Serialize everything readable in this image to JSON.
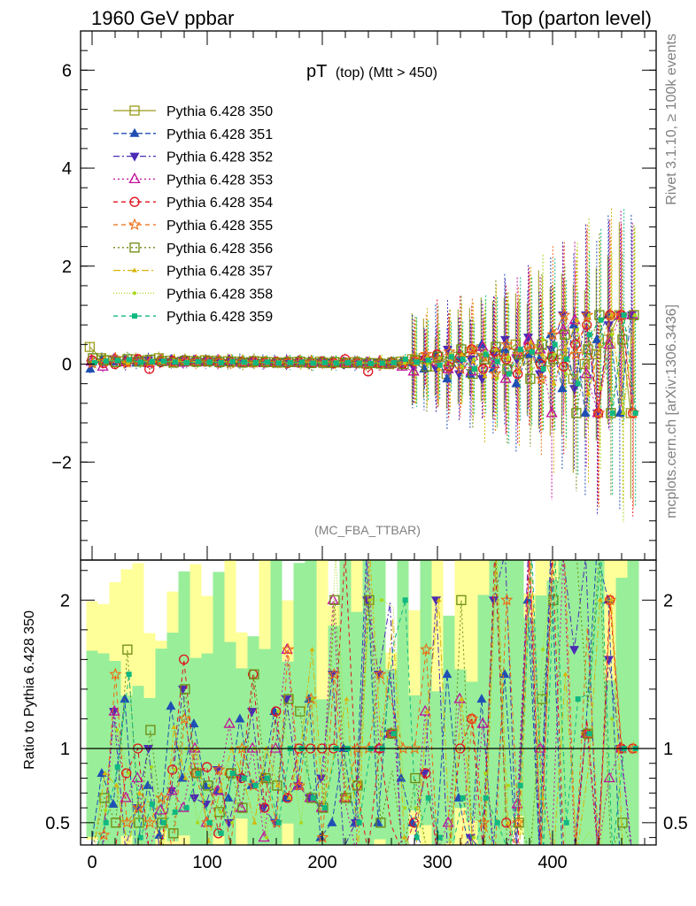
{
  "header": {
    "left": "1960 GeV ppbar",
    "right": "Top (parton level)"
  },
  "side_labels": {
    "rivet": "Rivet 3.1.10, ≥ 100k events",
    "mcplots": "mcplots.cern.ch [arXiv:1306.3436]"
  },
  "colors": {
    "reference_band_yellow": "#ffff99",
    "reference_band_green": "#99ee99"
  },
  "chart_data": [
    {
      "type": "scatter",
      "panel": "main",
      "title_main": "pT",
      "title_sub": "(top) (Mtt > 450)",
      "watermark": "(MC_FBA_TTBAR)",
      "xlabel": "",
      "ylabel": "",
      "xlim": [
        -10,
        490
      ],
      "ylim": [
        -4,
        6.8
      ],
      "yticks": [
        -2,
        0,
        2,
        4,
        6
      ],
      "ytick_labels": [
        "−2",
        "0",
        "2",
        "4",
        "6"
      ],
      "legend_position": "top-left",
      "x": [
        0,
        10,
        20,
        30,
        40,
        50,
        60,
        70,
        80,
        90,
        100,
        110,
        120,
        130,
        140,
        150,
        160,
        170,
        180,
        190,
        200,
        210,
        220,
        230,
        240,
        250,
        260,
        270,
        280,
        290,
        300,
        310,
        320,
        330,
        340,
        350,
        360,
        370,
        380,
        390,
        400,
        410,
        420,
        430,
        440,
        450,
        460,
        470
      ],
      "series": [
        {
          "name": "Pythia 6.428 350",
          "color": "#9a9a1a",
          "dash": "solid",
          "marker": "square-open",
          "values": [
            0.35,
            0.12,
            0.08,
            0.06,
            0.1,
            0.08,
            0.12,
            0.07,
            0.05,
            0.06,
            0.08,
            0.07,
            0.06,
            0.05,
            0.04,
            0.05,
            0.04,
            0.03,
            0.04,
            0.03,
            0.05,
            0.02,
            0.03,
            0.04,
            0.01,
            0.02,
            0.0,
            0.05,
            0.1,
            0.12,
            -0.05,
            -0.2,
            0.15,
            0.25,
            0.3,
            0.1,
            0.2,
            0.4,
            0.1,
            0.3,
            0.05,
            0.2,
            -0.3,
            0.0,
            0.2,
            0.5,
            1.0,
            -1.0
          ]
        },
        {
          "name": "Pythia 6.428 351",
          "color": "#1f4fb4",
          "dash": "6,3",
          "marker": "triangle-up",
          "values": [
            -0.1,
            0.1,
            0.05,
            0.08,
            0.02,
            0.06,
            0.05,
            0.09,
            0.04,
            0.07,
            0.06,
            0.05,
            0.04,
            0.06,
            0.03,
            0.04,
            0.05,
            0.02,
            0.03,
            0.04,
            0.02,
            0.01,
            0.03,
            0.02,
            0.03,
            0.01,
            0.02,
            0.04,
            0.05,
            -0.1,
            0.2,
            -0.3,
            0.1,
            -0.2,
            0.4,
            -0.1,
            0.3,
            -0.4,
            0.2,
            0.1,
            0.6,
            -0.5,
            0.8,
            -1.0,
            0.5,
            1.0,
            -1.0,
            1.0
          ]
        },
        {
          "name": "Pythia 6.428 352",
          "color": "#4b2bb4",
          "dash": "7,3,2,3",
          "marker": "triangle-down",
          "values": [
            0.0,
            0.04,
            0.1,
            0.02,
            0.06,
            0.08,
            0.03,
            0.05,
            0.07,
            0.04,
            0.05,
            0.06,
            0.03,
            0.04,
            0.05,
            0.03,
            0.02,
            0.04,
            0.03,
            0.02,
            0.04,
            0.03,
            0.01,
            0.02,
            0.02,
            0.03,
            0.01,
            0.0,
            -0.05,
            0.1,
            -0.1,
            0.3,
            -0.2,
            0.1,
            -0.3,
            0.2,
            0.5,
            0.1,
            0.55,
            -0.2,
            0.3,
            1.0,
            -0.5,
            1.0,
            -1.0,
            0.8,
            1.0,
            1.0
          ]
        },
        {
          "name": "Pythia 6.428 353",
          "color": "#c0109a",
          "dash": "2,3",
          "marker": "triangle-open",
          "values": [
            0.05,
            -0.05,
            0.1,
            0.04,
            0.08,
            0.02,
            0.07,
            0.05,
            0.03,
            0.06,
            0.04,
            0.05,
            0.07,
            0.03,
            0.04,
            0.02,
            0.04,
            0.05,
            0.03,
            0.02,
            0.03,
            0.04,
            0.02,
            0.01,
            0.03,
            0.02,
            0.0,
            -0.05,
            -0.15,
            0.15,
            0.05,
            -0.1,
            0.2,
            -0.15,
            0.35,
            0.0,
            -0.3,
            0.25,
            0.5,
            0.3,
            -1.0,
            0.7,
            0.9,
            -0.2,
            -1.0,
            0.4,
            1.0,
            1.0
          ]
        },
        {
          "name": "Pythia 6.428 354",
          "color": "#e0101e",
          "dash": "5,4",
          "marker": "circle-open",
          "values": [
            0.08,
            0.02,
            0.0,
            0.05,
            0.1,
            -0.1,
            0.04,
            0.06,
            0.08,
            0.05,
            0.07,
            0.03,
            0.05,
            0.04,
            0.06,
            0.03,
            0.05,
            0.02,
            0.04,
            0.03,
            0.05,
            0.02,
            0.1,
            0.03,
            -0.15,
            0.02,
            0.04,
            0.01,
            0.05,
            0.1,
            0.2,
            -0.05,
            0.15,
            0.3,
            -0.1,
            0.25,
            0.1,
            -0.2,
            0.35,
            0.0,
            0.15,
            -0.05,
            0.4,
            0.8,
            -1.0,
            1.0,
            1.0,
            -1.0
          ]
        },
        {
          "name": "Pythia 6.428 355",
          "color": "#ee6a10",
          "dash": "5,4",
          "marker": "star",
          "values": [
            0.02,
            0.05,
            0.12,
            0.03,
            0.06,
            0.04,
            0.08,
            0.02,
            0.06,
            0.05,
            0.04,
            0.06,
            0.02,
            0.05,
            0.03,
            0.04,
            0.02,
            0.05,
            0.03,
            0.04,
            0.02,
            0.03,
            0.02,
            0.04,
            0.01,
            0.03,
            0.02,
            0.05,
            0.1,
            0.2,
            0.1,
            0.25,
            -0.1,
            0.3,
            0.15,
            -0.2,
            0.4,
            0.2,
            0.3,
            -0.3,
            0.6,
            1.0,
            0.2,
            1.0,
            -1.0,
            1.0,
            1.0,
            -1.0
          ]
        },
        {
          "name": "Pythia 6.428 356",
          "color": "#6c8a10",
          "dash": "2,3",
          "marker": "square-open",
          "values": [
            0.12,
            0.08,
            0.04,
            0.1,
            0.05,
            0.09,
            0.06,
            0.03,
            0.07,
            0.05,
            0.06,
            0.04,
            0.05,
            0.03,
            0.06,
            0.04,
            0.03,
            0.04,
            0.05,
            0.02,
            0.03,
            0.04,
            0.02,
            0.03,
            0.02,
            0.01,
            0.03,
            0.0,
            0.08,
            -0.05,
            0.15,
            0.05,
            0.3,
            -0.2,
            0.1,
            0.35,
            -0.1,
            0.2,
            -0.3,
            0.4,
            0.1,
            0.6,
            -1.0,
            0.3,
            1.0,
            -1.0,
            0.5,
            1.0
          ]
        },
        {
          "name": "Pythia 6.428 357",
          "color": "#d8b40a",
          "dash": "8,3,2,3",
          "marker": "triangle-small",
          "values": [
            0.06,
            0.1,
            0.06,
            0.02,
            0.07,
            0.05,
            0.03,
            0.08,
            0.04,
            0.06,
            0.03,
            0.05,
            0.06,
            0.04,
            0.02,
            0.05,
            0.03,
            0.02,
            0.04,
            0.05,
            0.03,
            0.02,
            0.04,
            0.01,
            0.03,
            0.02,
            0.04,
            0.02,
            0.0,
            0.15,
            -0.1,
            0.1,
            0.2,
            0.05,
            -0.25,
            0.3,
            0.1,
            -0.15,
            0.45,
            0.2,
            -0.4,
            0.3,
            0.9,
            -0.6,
            0.4,
            1.0,
            -1.0,
            1.0
          ]
        },
        {
          "name": "Pythia 6.428 358",
          "color": "#a8d818",
          "dash": "1,2",
          "marker": "dot",
          "values": [
            0.04,
            0.07,
            0.09,
            0.05,
            0.03,
            0.07,
            0.04,
            0.06,
            0.05,
            0.03,
            0.06,
            0.04,
            0.03,
            0.05,
            0.04,
            0.02,
            0.05,
            0.03,
            0.02,
            0.04,
            0.03,
            0.05,
            0.02,
            0.03,
            0.02,
            0.04,
            0.01,
            0.03,
            0.06,
            0.0,
            0.12,
            0.2,
            -0.05,
            0.1,
            0.25,
            -0.3,
            0.15,
            0.3,
            -0.1,
            0.5,
            0.2,
            -0.2,
            0.7,
            1.0,
            -0.5,
            0.6,
            -1.0,
            1.0
          ]
        },
        {
          "name": "Pythia 6.428 359",
          "color": "#10b880",
          "dash": "5,4",
          "marker": "square-filled",
          "values": [
            0.03,
            0.06,
            0.07,
            0.09,
            0.04,
            0.05,
            0.06,
            0.04,
            0.03,
            0.05,
            0.04,
            0.03,
            0.05,
            0.04,
            0.03,
            0.04,
            0.02,
            0.03,
            0.04,
            0.02,
            0.03,
            0.02,
            0.03,
            0.02,
            0.01,
            0.02,
            0.03,
            0.1,
            0.04,
            0.08,
            -0.02,
            0.15,
            0.1,
            -0.1,
            0.2,
            0.05,
            -0.2,
            0.3,
            0.25,
            -0.1,
            0.4,
            0.1,
            -0.4,
            0.6,
            0.9,
            -1.0,
            1.0,
            -1.0
          ]
        }
      ]
    },
    {
      "type": "line",
      "panel": "ratio",
      "ylabel": "Ratio to Pythia 6.428 350",
      "xlim": [
        -10,
        490
      ],
      "ylim": [
        0.35,
        2.27
      ],
      "xticks": [
        0,
        100,
        200,
        300,
        400
      ],
      "xtick_labels": [
        "0",
        "100",
        "200",
        "300",
        "400"
      ],
      "yticks": [
        0.5,
        1,
        2
      ],
      "ytick_labels": [
        "0.5",
        "1",
        "2"
      ],
      "reference_line": 1
    }
  ]
}
